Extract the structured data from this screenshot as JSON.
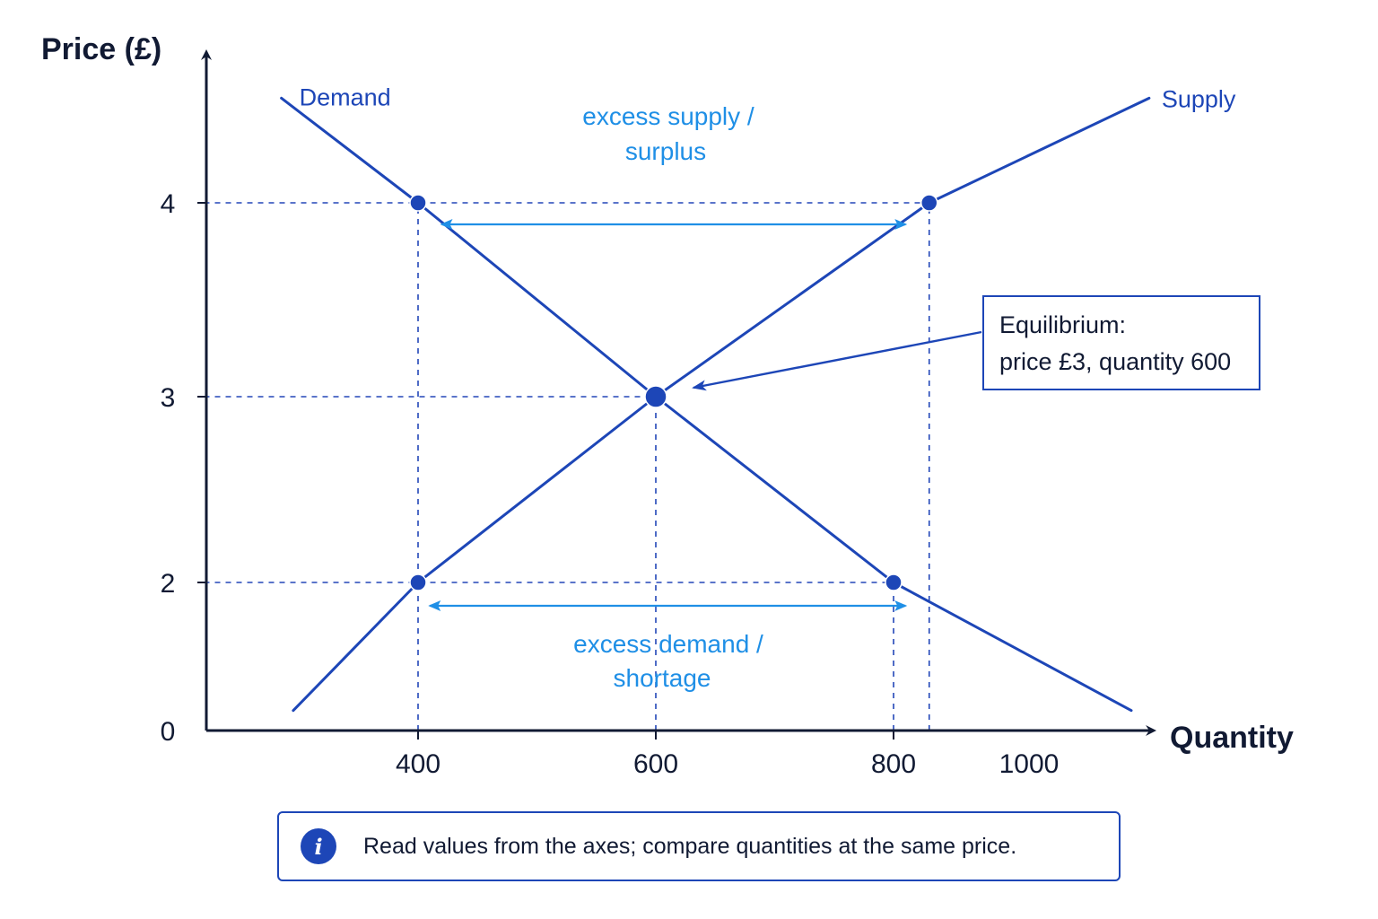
{
  "chart_data": {
    "type": "line",
    "title": "",
    "xlabel": "Quantity",
    "ylabel": "Price (£)",
    "xlim": [
      220,
      1120
    ],
    "ylim": [
      0,
      4.6
    ],
    "x_ticks": [
      "400",
      "600",
      "800",
      "1000"
    ],
    "y_ticks": [
      "0",
      "2",
      "3",
      "4"
    ],
    "grid": false,
    "series": [
      {
        "name": "Demand",
        "x": [
          285,
          400,
          600,
          800,
          1000
        ],
        "y": [
          4.54,
          4.0,
          3.0,
          2.0,
          0.27
        ],
        "color": "#1d46b7"
      },
      {
        "name": "Supply",
        "x": [
          295,
          400,
          600,
          830,
          1015
        ],
        "y": [
          0.27,
          2.0,
          3.0,
          4.0,
          4.54
        ],
        "color": "#1d46b7"
      }
    ],
    "points": [
      {
        "x": 400,
        "y": 4,
        "role": "demand-at-price-4"
      },
      {
        "x": 830,
        "y": 4,
        "role": "supply-at-price-4"
      },
      {
        "x": 600,
        "y": 3,
        "role": "equilibrium"
      },
      {
        "x": 400,
        "y": 2,
        "role": "supply-at-price-2"
      },
      {
        "x": 800,
        "y": 2,
        "role": "demand-at-price-2"
      }
    ],
    "reference_lines": [
      {
        "axis": "horizontal",
        "value": 4,
        "from": 220,
        "to": 830
      },
      {
        "axis": "horizontal",
        "value": 3,
        "from": 220,
        "to": 600
      },
      {
        "axis": "horizontal",
        "value": 2,
        "from": 220,
        "to": 800
      },
      {
        "axis": "vertical",
        "value": 400,
        "from": 0,
        "to": 4
      },
      {
        "axis": "vertical",
        "value": 600,
        "from": 0,
        "to": 3
      },
      {
        "axis": "vertical",
        "value": 800,
        "from": 0,
        "to": 2
      },
      {
        "axis": "vertical",
        "value": 830,
        "from": 0,
        "to": 4
      }
    ],
    "arrows": [
      {
        "name": "excess supply",
        "price": 4,
        "from": 420,
        "to": 810
      },
      {
        "name": "excess demand",
        "price": 2,
        "from": 410,
        "to": 810
      }
    ],
    "annotations": {
      "excess_supply": [
        "excess supply /",
        "surplus"
      ],
      "excess_demand": [
        "excess demand /",
        "shortage"
      ],
      "equilibrium": [
        "Equilibrium:",
        "price £3, quantity 600"
      ]
    },
    "colors": {
      "curve": "#1d46b7",
      "guide": "#2347b8",
      "highlight": "#1f8fe6",
      "text": "#111a33"
    }
  },
  "info": {
    "icon": "info-icon",
    "icon_glyph": "i",
    "text": "Read values from the axes; compare quantities at the same price."
  }
}
